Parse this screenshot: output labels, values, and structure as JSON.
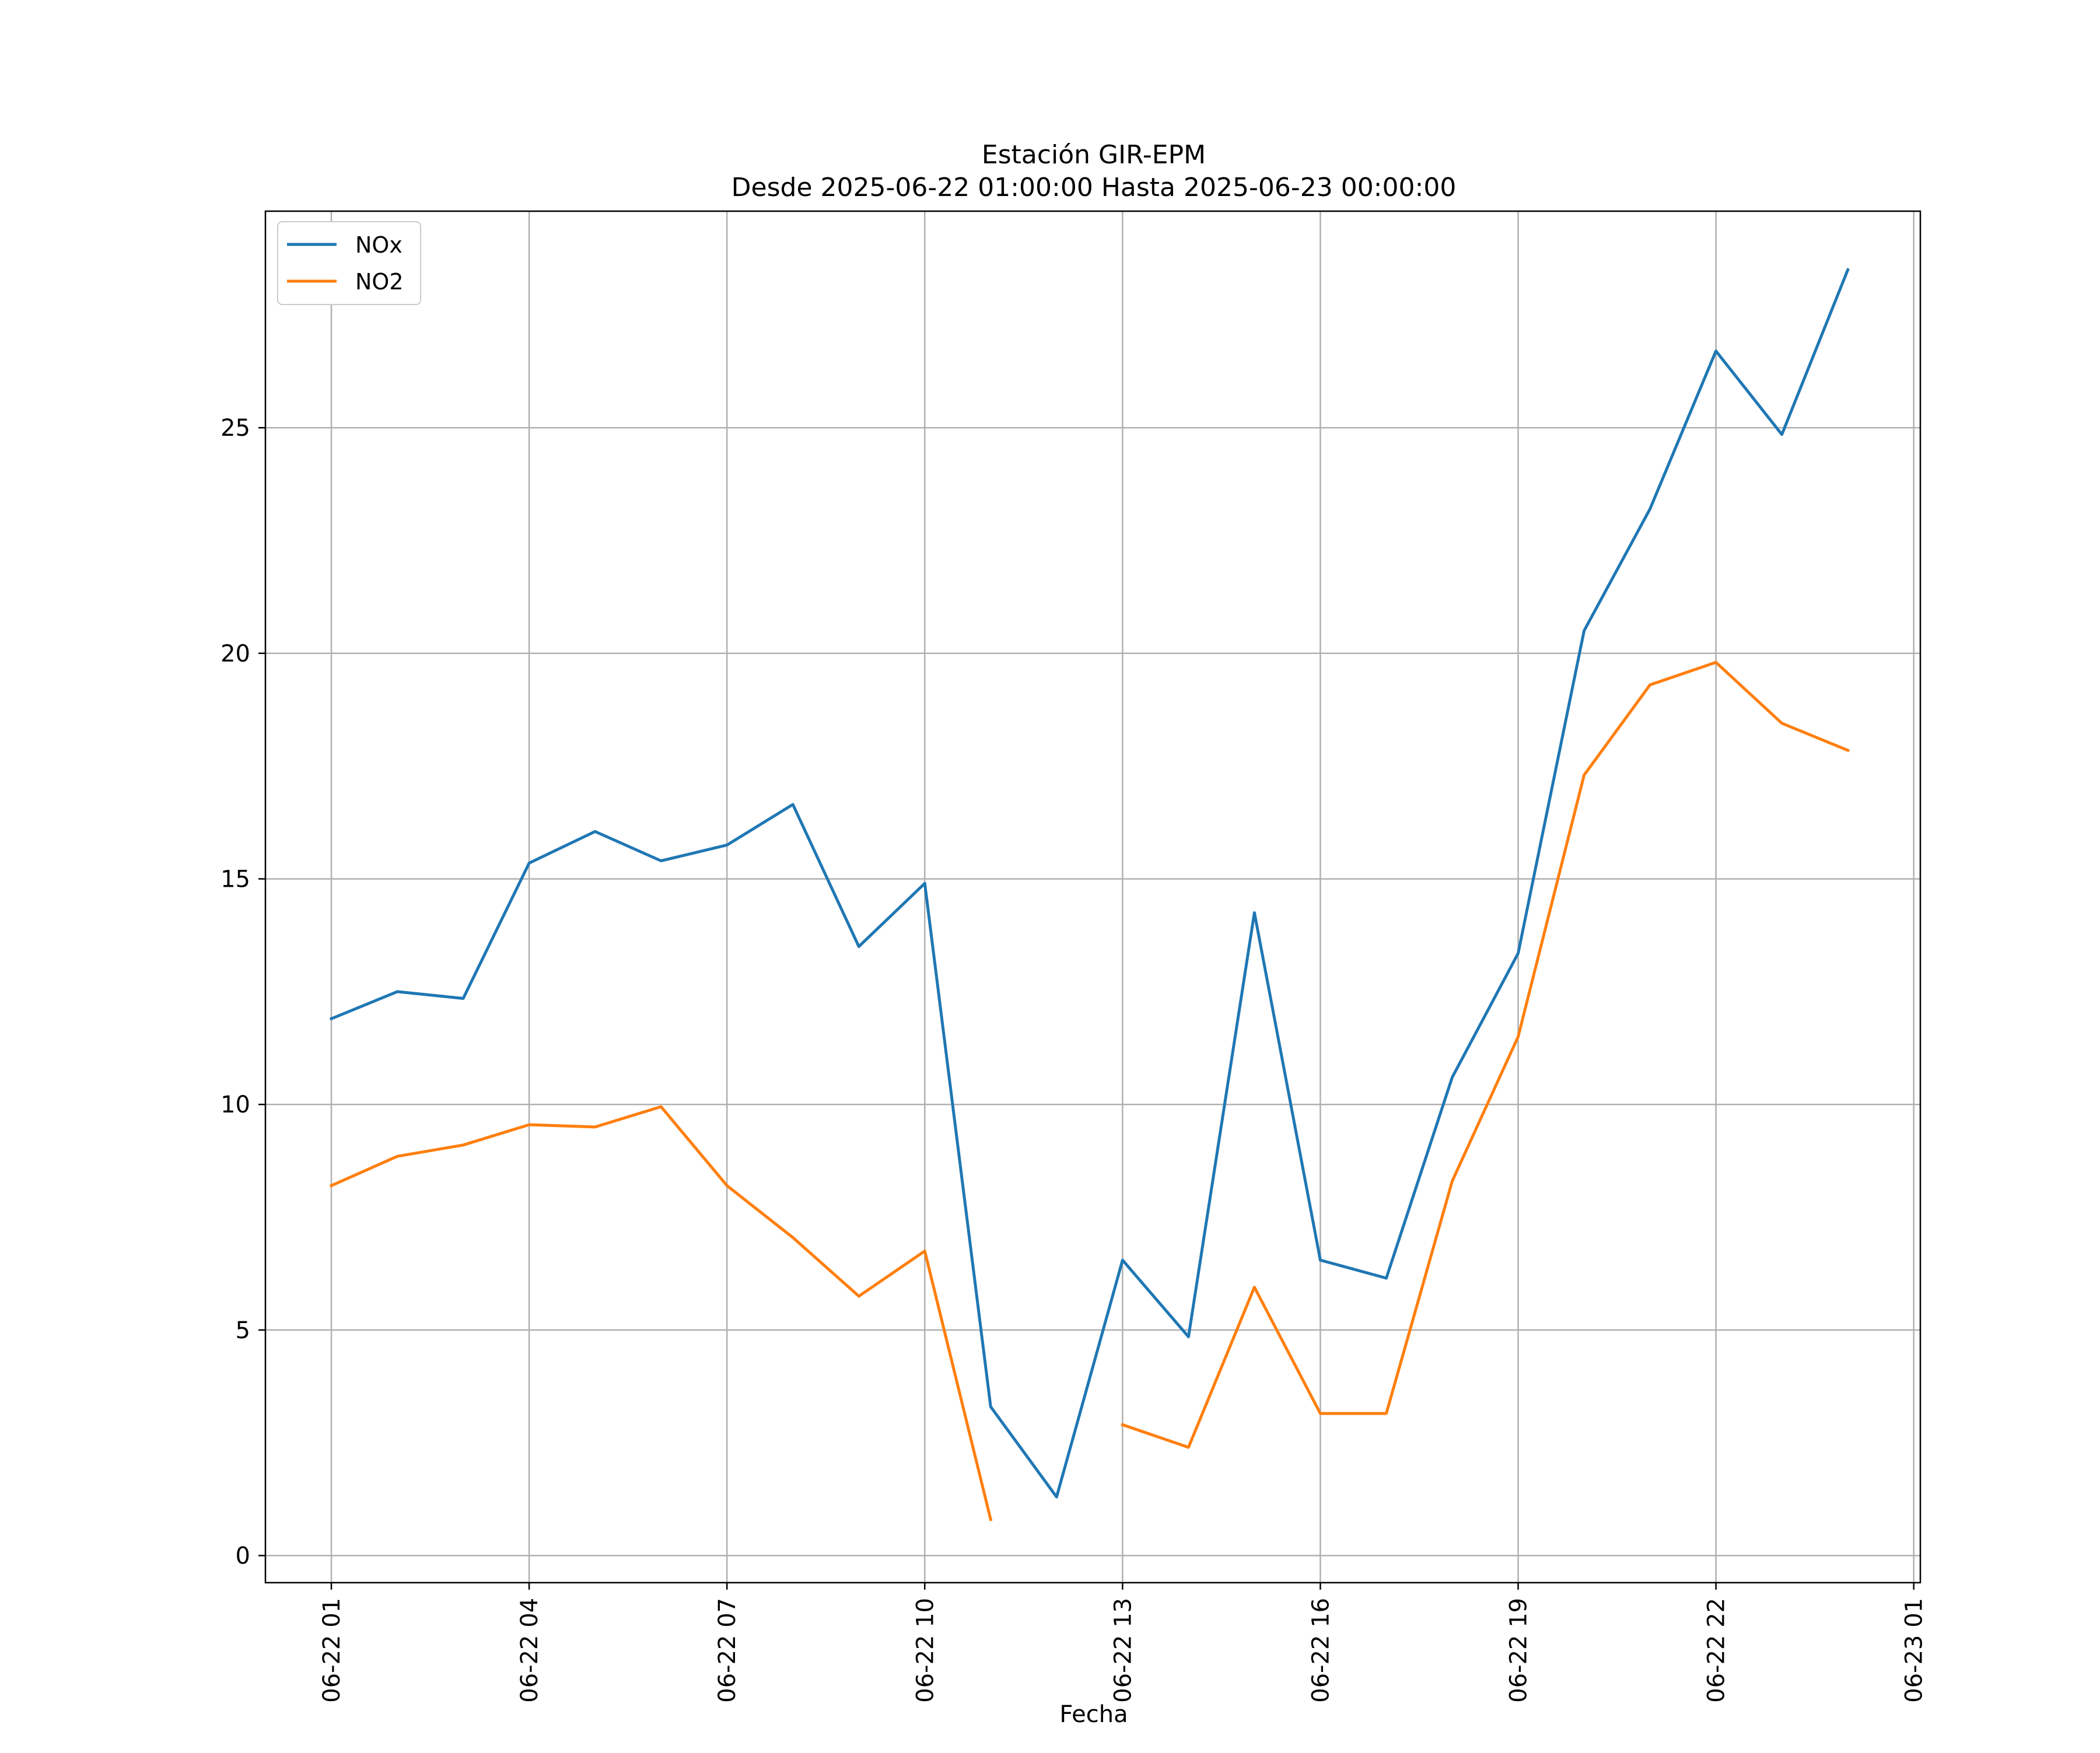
{
  "chart_data": {
    "type": "line",
    "title": "Estación GIR-EPM",
    "subtitle": "Desde 2025-06-22 01:00:00 Hasta 2025-06-23 00:00:00",
    "xlabel": "Fecha",
    "ylabel": "",
    "x": [
      "2025-06-22 01:00",
      "2025-06-22 02:00",
      "2025-06-22 03:00",
      "2025-06-22 04:00",
      "2025-06-22 05:00",
      "2025-06-22 06:00",
      "2025-06-22 07:00",
      "2025-06-22 08:00",
      "2025-06-22 09:00",
      "2025-06-22 10:00",
      "2025-06-22 11:00",
      "2025-06-22 12:00",
      "2025-06-22 13:00",
      "2025-06-22 14:00",
      "2025-06-22 15:00",
      "2025-06-22 16:00",
      "2025-06-22 17:00",
      "2025-06-22 18:00",
      "2025-06-22 19:00",
      "2025-06-22 20:00",
      "2025-06-22 21:00",
      "2025-06-22 22:00",
      "2025-06-22 23:00",
      "2025-06-23 00:00"
    ],
    "series": [
      {
        "name": "NOx",
        "color": "#1f77b4",
        "values": [
          11.9,
          12.5,
          12.35,
          15.35,
          16.05,
          15.4,
          15.75,
          16.65,
          13.5,
          14.9,
          3.3,
          1.3,
          6.55,
          4.85,
          14.25,
          6.55,
          6.15,
          10.6,
          13.35,
          20.5,
          23.2,
          26.7,
          24.85,
          28.5
        ]
      },
      {
        "name": "NO2",
        "color": "#ff7f0e",
        "values": [
          8.2,
          8.85,
          9.1,
          9.55,
          9.5,
          9.95,
          8.2,
          7.05,
          5.75,
          6.75,
          0.8,
          null,
          2.9,
          2.4,
          5.95,
          3.15,
          3.15,
          8.3,
          11.5,
          17.3,
          19.3,
          19.8,
          18.45,
          17.85
        ]
      }
    ],
    "xticks": [
      "06-22 01",
      "06-22 04",
      "06-22 07",
      "06-22 10",
      "06-22 13",
      "06-22 16",
      "06-22 19",
      "06-22 22",
      "06-23 01"
    ],
    "xlim": [
      "2025-06-22 00:00",
      "2025-06-23 01:06"
    ],
    "yticks": [
      0,
      5,
      10,
      15,
      20,
      25
    ],
    "ylim": [
      -0.6,
      29.8
    ],
    "grid": true,
    "legend": "top-left"
  }
}
